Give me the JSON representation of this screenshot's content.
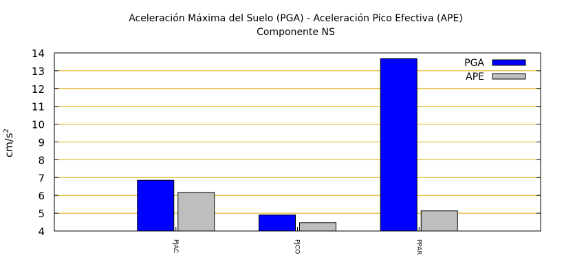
{
  "chart_data": {
    "type": "bar",
    "title": "Aceleración Máxima del Suelo (PGA) -  Aceleración Pico Efectiva (APE)",
    "subtitle": "Componente NS",
    "ylabel_base": "cm/s",
    "ylabel_exp": "2",
    "xlabel": "",
    "ylim": [
      4,
      14
    ],
    "yticks": [
      4,
      5,
      6,
      7,
      8,
      9,
      10,
      11,
      12,
      13,
      14
    ],
    "grid": true,
    "grid_color": "#e0a800",
    "legend_position": "top-right",
    "categories": [
      "PJAC",
      "PJCO",
      "PPAR"
    ],
    "series": [
      {
        "name": "PGA",
        "color": "#0000ff",
        "values": [
          6.85,
          4.9,
          13.68
        ]
      },
      {
        "name": "APE",
        "color": "#bebebe",
        "values": [
          6.17,
          4.47,
          5.13
        ]
      }
    ]
  }
}
